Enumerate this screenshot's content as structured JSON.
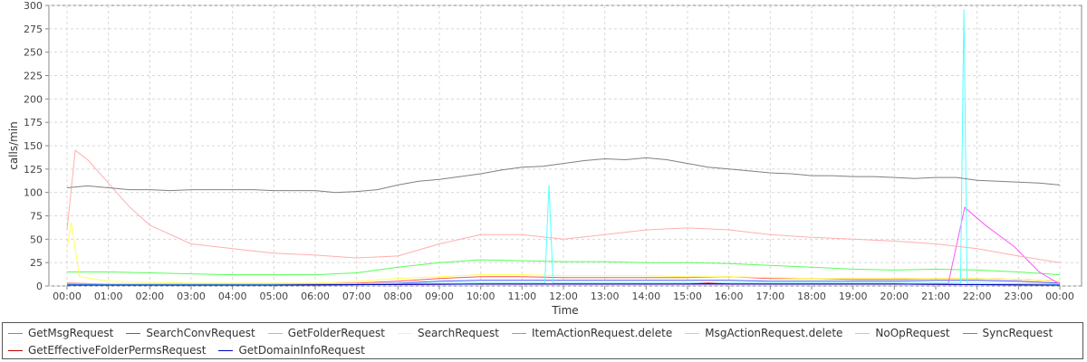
{
  "chart_data": {
    "type": "line",
    "xlabel": "Time",
    "ylabel": "calls/min",
    "ylim": [
      0,
      300
    ],
    "yticks": [
      0,
      25,
      50,
      75,
      100,
      125,
      150,
      175,
      200,
      225,
      250,
      275,
      300
    ],
    "xticks": [
      "00:00",
      "01:00",
      "02:00",
      "03:00",
      "04:00",
      "05:00",
      "06:00",
      "07:00",
      "08:00",
      "09:00",
      "10:00",
      "11:00",
      "12:00",
      "13:00",
      "14:00",
      "15:00",
      "16:00",
      "17:00",
      "18:00",
      "19:00",
      "20:00",
      "21:00",
      "22:00",
      "23:00",
      "00:00"
    ],
    "grid": true,
    "legend_position": "bottom",
    "series": [
      {
        "name": "GetMsgRequest",
        "color": "#ff5555",
        "x": [
          0,
          1,
          2,
          3,
          4,
          5,
          6,
          7,
          8,
          9,
          10,
          11,
          12,
          13,
          14,
          15,
          16,
          17,
          18,
          19,
          20,
          21,
          22,
          23,
          24
        ],
        "y": [
          3,
          2,
          2,
          2,
          2,
          2,
          2,
          3,
          5,
          8,
          10,
          10,
          9,
          9,
          9,
          9,
          10,
          8,
          8,
          7,
          7,
          8,
          8,
          7,
          5
        ]
      },
      {
        "name": "SearchConvRequest",
        "color": "#5555ff",
        "x": [
          0,
          1,
          2,
          3,
          4,
          5,
          6,
          7,
          8,
          9,
          10,
          11,
          12,
          13,
          14,
          15,
          16,
          17,
          18,
          19,
          20,
          21,
          22,
          23,
          24
        ],
        "y": [
          2,
          1,
          1,
          1,
          1,
          1,
          1,
          2,
          3,
          5,
          6,
          6,
          6,
          6,
          6,
          6,
          6,
          5,
          5,
          5,
          5,
          6,
          6,
          5,
          3
        ]
      },
      {
        "name": "GetFolderRequest",
        "color": "#55ff55",
        "x": [
          0,
          1,
          2,
          3,
          4,
          5,
          6,
          7,
          8,
          9,
          10,
          11,
          12,
          13,
          14,
          15,
          16,
          17,
          18,
          19,
          20,
          21,
          22,
          23,
          24
        ],
        "y": [
          15,
          15,
          14,
          13,
          12,
          12,
          12,
          14,
          20,
          25,
          28,
          27,
          26,
          26,
          25,
          25,
          24,
          22,
          20,
          18,
          17,
          18,
          17,
          15,
          12
        ]
      },
      {
        "name": "SearchRequest",
        "color": "#ffff55",
        "x": [
          0,
          0.1,
          0.3,
          1,
          2,
          3,
          4,
          5,
          6,
          7,
          8,
          9,
          10,
          11,
          12,
          13,
          14,
          15,
          16,
          17,
          18,
          19,
          20,
          21,
          22,
          23,
          24
        ],
        "y": [
          40,
          68,
          10,
          5,
          4,
          3,
          3,
          3,
          3,
          5,
          8,
          10,
          12,
          12,
          11,
          11,
          11,
          10,
          10,
          9,
          8,
          8,
          8,
          8,
          8,
          7,
          5
        ]
      },
      {
        "name": "ItemActionRequest.delete",
        "color": "#ff55ff",
        "x": [
          0,
          5,
          10,
          15,
          20,
          21.3,
          21.7,
          22.2,
          22.9,
          23.5,
          24
        ],
        "y": [
          1,
          1,
          2,
          2,
          2,
          2,
          84,
          65,
          42,
          15,
          2
        ]
      },
      {
        "name": "MsgActionRequest.delete",
        "color": "#55ffff",
        "x": [
          0,
          5,
          10,
          11.55,
          11.65,
          11.75,
          15,
          20,
          21.6,
          21.68,
          21.76,
          24
        ],
        "y": [
          2,
          2,
          3,
          3,
          108,
          3,
          3,
          3,
          3,
          296,
          3,
          2
        ]
      },
      {
        "name": "NoOpRequest",
        "color": "#ffafaf",
        "x": [
          0,
          0.2,
          0.5,
          1,
          1.5,
          2,
          3,
          4,
          5,
          6,
          7,
          8,
          9,
          10,
          11,
          12,
          13,
          14,
          15,
          16,
          17,
          18,
          19,
          20,
          21,
          22,
          23,
          24
        ],
        "y": [
          60,
          145,
          135,
          110,
          85,
          65,
          45,
          40,
          35,
          33,
          30,
          32,
          45,
          55,
          55,
          50,
          55,
          60,
          62,
          60,
          55,
          52,
          50,
          48,
          45,
          40,
          32,
          25
        ]
      },
      {
        "name": "SyncRequest",
        "color": "#808080",
        "x": [
          0,
          0.5,
          1,
          1.5,
          2,
          2.5,
          3,
          3.5,
          4,
          4.5,
          5,
          5.5,
          6,
          6.5,
          7,
          7.5,
          8,
          8.5,
          9,
          9.5,
          10,
          10.5,
          11,
          11.5,
          12,
          12.5,
          13,
          13.5,
          14,
          14.5,
          15,
          15.5,
          16,
          16.5,
          17,
          17.5,
          18,
          18.5,
          19,
          19.5,
          20,
          20.5,
          21,
          21.5,
          22,
          22.5,
          23,
          23.5,
          24
        ],
        "y": [
          105,
          107,
          105,
          103,
          103,
          102,
          103,
          103,
          103,
          103,
          102,
          102,
          102,
          100,
          101,
          103,
          108,
          112,
          114,
          117,
          120,
          124,
          127,
          128,
          131,
          134,
          136,
          135,
          137,
          135,
          131,
          127,
          125,
          123,
          121,
          120,
          118,
          118,
          117,
          117,
          116,
          115,
          116,
          116,
          113,
          112,
          111,
          110,
          108
        ]
      },
      {
        "name": "GetEffectiveFolderPermsRequest",
        "color": "#c00000",
        "x": [
          0,
          5,
          10,
          15,
          15.5,
          16,
          20,
          24
        ],
        "y": [
          1,
          1,
          2,
          2,
          3,
          2,
          2,
          1
        ]
      },
      {
        "name": "GetDomainInfoRequest",
        "color": "#0000c0",
        "x": [
          0,
          5,
          10,
          15,
          20,
          24
        ],
        "y": [
          1,
          1,
          2,
          2,
          2,
          1
        ]
      }
    ]
  }
}
